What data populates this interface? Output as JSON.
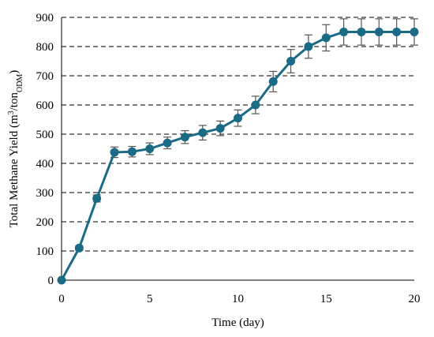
{
  "chart_data": {
    "type": "line",
    "xlabel": "Time (day)",
    "ylabel_parts": {
      "main": "Total Methane Yield (m",
      "sup": "3",
      "mid": "/ton",
      "sub": "ODM",
      "end": ")"
    },
    "xlim": [
      0,
      20
    ],
    "ylim": [
      0,
      900
    ],
    "xticks": [
      0,
      5,
      10,
      15,
      20
    ],
    "yticks": [
      0,
      100,
      200,
      300,
      400,
      500,
      600,
      700,
      800,
      900
    ],
    "grid": "horizontal dashed",
    "series": [
      {
        "color": "#1b6a86",
        "x": [
          0,
          1,
          2,
          3,
          4,
          5,
          6,
          7,
          8,
          9,
          10,
          11,
          12,
          13,
          14,
          15,
          16,
          17,
          18,
          19,
          20
        ],
        "y": [
          0,
          110,
          280,
          438,
          440,
          450,
          470,
          490,
          505,
          520,
          555,
          600,
          680,
          750,
          800,
          830,
          850,
          850,
          850,
          850,
          850
        ],
        "error": [
          0,
          8,
          12,
          18,
          18,
          20,
          20,
          22,
          25,
          25,
          28,
          30,
          35,
          40,
          40,
          45,
          45,
          45,
          45,
          45,
          45
        ]
      }
    ]
  }
}
